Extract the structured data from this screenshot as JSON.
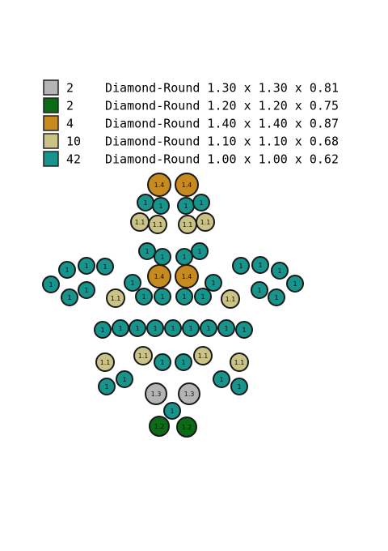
{
  "legend": {
    "rows": [
      {
        "color": "#b4b4b4",
        "count": "2",
        "description": "Diamond-Round 1.30 x 1.30 x 0.81",
        "stone_label": "1.3"
      },
      {
        "color": "#0b6b16",
        "count": "2",
        "description": "Diamond-Round 1.20 x 1.20 x 0.75",
        "stone_label": "1.2"
      },
      {
        "color": "#c68a1f",
        "count": "4",
        "description": "Diamond-Round 1.40 x 1.40 x 0.87",
        "stone_label": "1.4"
      },
      {
        "color": "#cbc386",
        "count": "10",
        "description": "Diamond-Round 1.10 x 1.10 x 0.68",
        "stone_label": "1.1"
      },
      {
        "color": "#17958d",
        "count": "42",
        "description": "Diamond-Round 1.00 x 1.00 x 0.62",
        "stone_label": "1"
      }
    ]
  }
}
